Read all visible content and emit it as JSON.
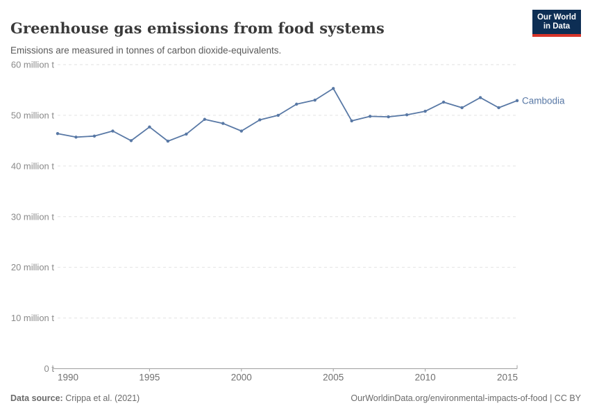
{
  "header": {
    "title": "Greenhouse gas emissions from food systems",
    "subtitle": "Emissions are measured in tonnes of carbon dioxide-equivalents."
  },
  "logo": {
    "line1": "Our World",
    "line2": "in Data",
    "bg_color": "#0d2e54",
    "accent_color": "#d8352a"
  },
  "chart_data": {
    "type": "line",
    "title": "Greenhouse gas emissions from food systems",
    "unit": "million t",
    "x": [
      1990,
      1991,
      1992,
      1993,
      1994,
      1995,
      1996,
      1997,
      1998,
      1999,
      2000,
      2001,
      2002,
      2003,
      2004,
      2005,
      2006,
      2007,
      2008,
      2009,
      2010,
      2011,
      2012,
      2013,
      2014,
      2015
    ],
    "series": [
      {
        "name": "Cambodia",
        "color": "#5878a5",
        "values": [
          46.4,
          45.7,
          45.9,
          46.9,
          45.0,
          47.7,
          44.9,
          46.3,
          49.2,
          48.4,
          46.9,
          49.1,
          50.0,
          52.2,
          53.0,
          55.3,
          48.9,
          49.8,
          49.7,
          50.1,
          50.8,
          52.6,
          51.5,
          53.5,
          51.5,
          52.9
        ]
      }
    ],
    "xlim": [
      1990,
      2015
    ],
    "ylim": [
      0,
      60
    ],
    "xticks": [
      1990,
      1995,
      2000,
      2005,
      2010,
      2015
    ],
    "yticks": [
      {
        "value": 0,
        "label": "0 t"
      },
      {
        "value": 10,
        "label": "10 million t"
      },
      {
        "value": 20,
        "label": "20 million t"
      },
      {
        "value": 30,
        "label": "30 million t"
      },
      {
        "value": 40,
        "label": "40 million t"
      },
      {
        "value": 50,
        "label": "50 million t"
      },
      {
        "value": 60,
        "label": "60 million t"
      }
    ],
    "grid": "horizontal-dashed",
    "legend_position": "end-of-line-label",
    "colors": {
      "gridline": "#e2e2e2",
      "axis": "#9e9e9e",
      "ytick_label": "#8a8a8a",
      "xtick_label": "#707070"
    }
  },
  "footer": {
    "source_label": "Data source:",
    "source_value": " Crippa et al. (2021)",
    "link": "OurWorldinData.org/environmental-impacts-of-food | CC BY"
  }
}
